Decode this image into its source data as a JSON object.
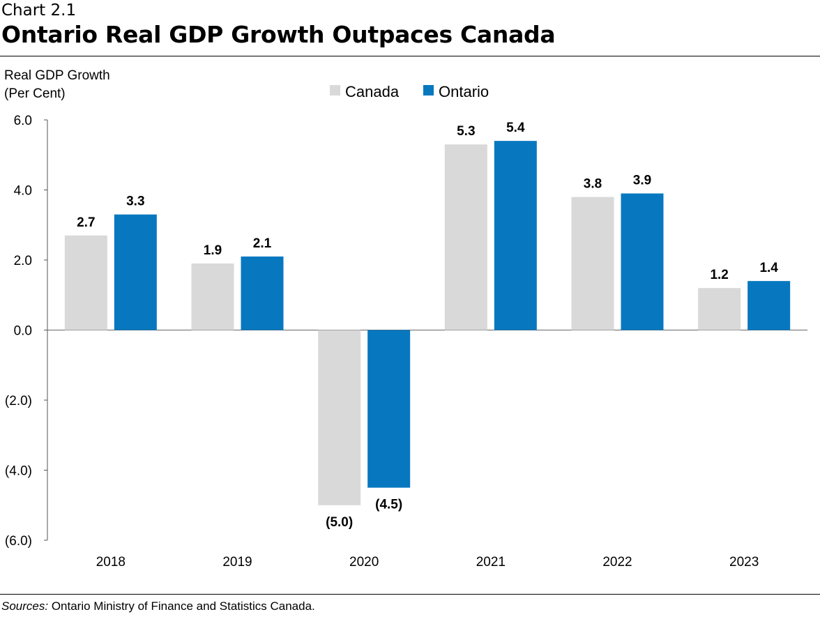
{
  "header": {
    "kicker": "Chart 2.1",
    "title": "Ontario Real GDP Growth Outpaces Canada"
  },
  "footer": {
    "sources_label": "Sources:",
    "sources_text": " Ontario Ministry of Finance and Statistics Canada."
  },
  "chart_data": {
    "type": "bar",
    "title": "Ontario Real GDP Growth Outpaces Canada",
    "ylabel_lines": [
      "Real GDP Growth",
      "(Per Cent)"
    ],
    "xlabel": "",
    "categories": [
      "2018",
      "2019",
      "2020",
      "2021",
      "2022",
      "2023"
    ],
    "series": [
      {
        "name": "Canada",
        "color": "#d9d9d9",
        "values": [
          2.7,
          1.9,
          -5.0,
          5.3,
          3.8,
          1.2
        ],
        "labels": [
          "2.7",
          "1.9",
          "(5.0)",
          "5.3",
          "3.8",
          "1.2"
        ]
      },
      {
        "name": "Ontario",
        "color": "#0778bf",
        "values": [
          3.3,
          2.1,
          -4.5,
          5.4,
          3.9,
          1.4
        ],
        "labels": [
          "3.3",
          "2.1",
          "(4.5)",
          "5.4",
          "3.9",
          "1.4"
        ]
      }
    ],
    "ylim": [
      -6.0,
      6.0
    ],
    "yticks": [
      6.0,
      4.0,
      2.0,
      0.0,
      -2.0,
      -4.0,
      -6.0
    ],
    "ytick_labels": [
      "6.0",
      "4.0",
      "2.0",
      "0.0",
      "(2.0)",
      "(4.0)",
      "(6.0)"
    ],
    "grid": false,
    "legend_position": "top-center"
  }
}
